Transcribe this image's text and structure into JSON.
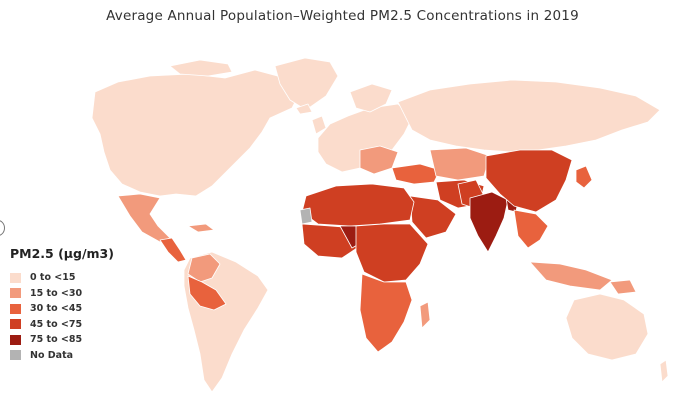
{
  "title": "Average Annual Population–Weighted PM2.5 Concentrations in 2019",
  "legend": {
    "title": "PM2.5 (µg/m3)",
    "items": [
      {
        "label": "0 to <15",
        "color": "#fbdccc"
      },
      {
        "label": "15 to <30",
        "color": "#f29a7c"
      },
      {
        "label": "30 to <45",
        "color": "#e8623d"
      },
      {
        "label": "45 to <75",
        "color": "#cf3f22"
      },
      {
        "label": "75 to <85",
        "color": "#9c1c12"
      },
      {
        "label": "No Data",
        "color": "#b3b3b3"
      }
    ]
  }
}
